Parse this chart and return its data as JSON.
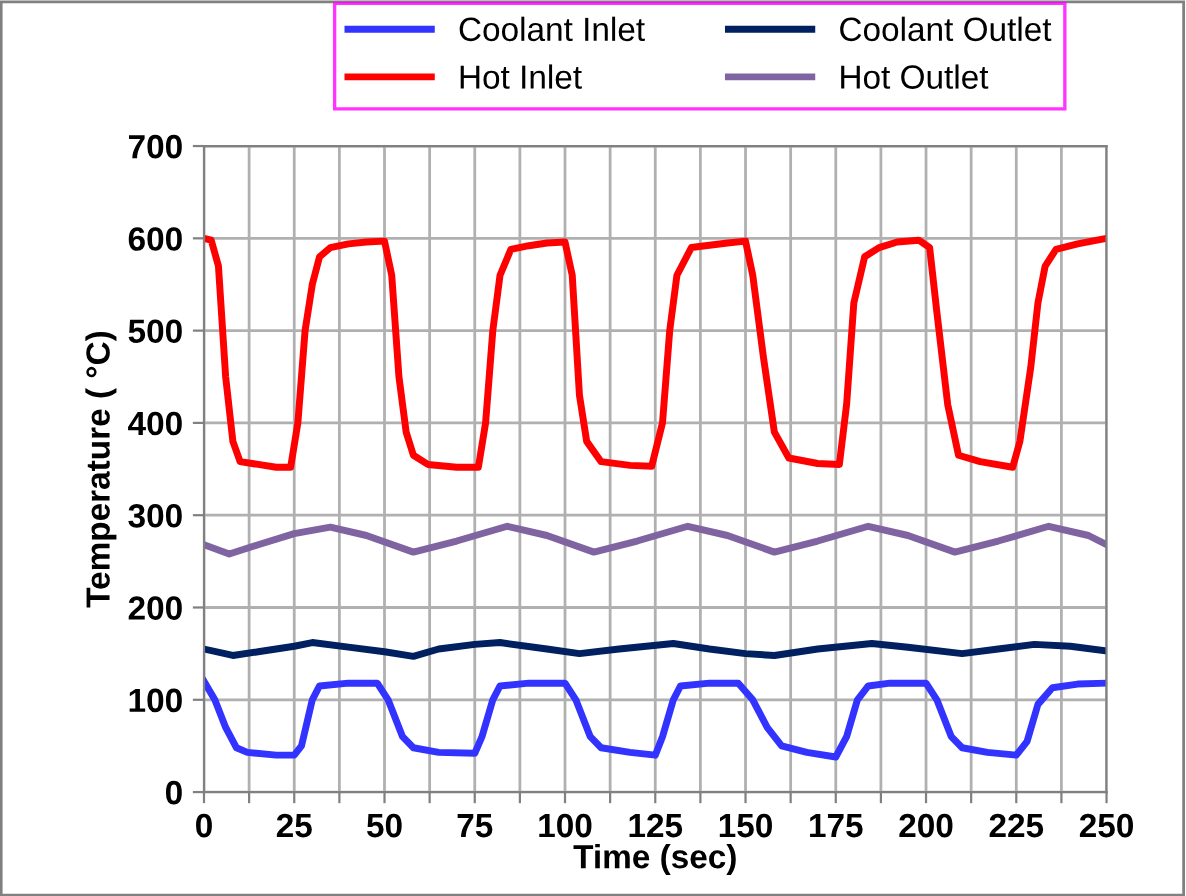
{
  "chart_data": {
    "type": "line",
    "xlabel": "Time (sec)",
    "ylabel": "Temperature ( °C)",
    "xlim": [
      0,
      250
    ],
    "ylim": [
      0,
      700
    ],
    "xticks": [
      0,
      {
        "value": 12.5,
        "label": null
      },
      25,
      {
        "value": 37.5,
        "label": null
      },
      50,
      {
        "value": 62.5,
        "label": null
      },
      75,
      {
        "value": 87.5,
        "label": null
      },
      100,
      {
        "value": 112.5,
        "label": null
      },
      125,
      {
        "value": 137.5,
        "label": null
      },
      150,
      {
        "value": 162.5,
        "label": null
      },
      175,
      {
        "value": 187.5,
        "label": null
      },
      200,
      {
        "value": 212.5,
        "label": null
      },
      225,
      {
        "value": 237.5,
        "label": null
      },
      250
    ],
    "yticks": [
      0,
      100,
      200,
      300,
      400,
      500,
      600,
      700
    ],
    "grid": true,
    "legend": "top",
    "marker": "none",
    "line_style": "solid",
    "series": [
      {
        "name": "Coolant Inlet",
        "color": "#3333ff",
        "x": [
          0,
          3,
          6,
          9,
          12,
          20,
          25,
          27,
          30,
          32,
          40,
          48,
          51,
          55,
          58,
          65,
          75,
          77,
          80,
          82,
          90,
          100,
          103,
          107,
          110,
          118,
          125,
          127,
          130,
          132,
          140,
          148,
          152,
          156,
          160,
          167,
          175,
          178,
          181,
          184,
          190,
          200,
          203,
          207,
          210,
          217,
          225,
          228,
          231,
          235,
          242,
          250
        ],
        "values": [
          120,
          100,
          70,
          48,
          43,
          40,
          40,
          50,
          100,
          115,
          118,
          118,
          100,
          60,
          48,
          43,
          42,
          60,
          100,
          115,
          118,
          118,
          100,
          60,
          48,
          43,
          40,
          60,
          100,
          115,
          118,
          118,
          100,
          70,
          50,
          43,
          38,
          60,
          100,
          115,
          118,
          118,
          100,
          60,
          48,
          43,
          40,
          55,
          95,
          113,
          117,
          118
        ]
      },
      {
        "name": "Coolant Outlet",
        "color": "#002060",
        "x": [
          0,
          8,
          15,
          25,
          30,
          40,
          50,
          58,
          65,
          75,
          82,
          95,
          104,
          115,
          130,
          140,
          150,
          158,
          170,
          185,
          195,
          210,
          220,
          230,
          240,
          250
        ],
        "values": [
          155,
          148,
          152,
          158,
          162,
          157,
          152,
          147,
          155,
          160,
          162,
          155,
          150,
          155,
          161,
          155,
          150,
          148,
          155,
          161,
          157,
          150,
          155,
          160,
          158,
          153
        ]
      },
      {
        "name": "Hot Inlet",
        "color": "#ff0000",
        "x": [
          0,
          2,
          4,
          6,
          8,
          10,
          15,
          20,
          24,
          26,
          28,
          30,
          32,
          35,
          40,
          45,
          50,
          52,
          54,
          56,
          58,
          62,
          70,
          76,
          78,
          80,
          82,
          85,
          90,
          95,
          100,
          102,
          104,
          106,
          110,
          118,
          124,
          127,
          129,
          131,
          135,
          145,
          150,
          152,
          155,
          158,
          162,
          170,
          176,
          178,
          180,
          183,
          187,
          192,
          198,
          201,
          203,
          206,
          209,
          215,
          224,
          226,
          229,
          231,
          233,
          236,
          242,
          250
        ],
        "values": [
          600,
          598,
          570,
          450,
          380,
          358,
          355,
          352,
          352,
          400,
          500,
          550,
          580,
          590,
          594,
          596,
          597,
          560,
          450,
          390,
          365,
          355,
          352,
          352,
          400,
          500,
          560,
          588,
          592,
          595,
          596,
          560,
          430,
          380,
          358,
          354,
          353,
          400,
          500,
          560,
          590,
          595,
          597,
          560,
          470,
          390,
          362,
          356,
          355,
          420,
          530,
          580,
          590,
          596,
          598,
          590,
          520,
          420,
          365,
          358,
          352,
          380,
          460,
          530,
          570,
          588,
          594,
          600
        ]
      },
      {
        "name": "Hot Outlet",
        "color": "#8064a2",
        "x": [
          0,
          7,
          15,
          25,
          35,
          45,
          58,
          70,
          84,
          95,
          108,
          120,
          134,
          145,
          158,
          170,
          184,
          195,
          208,
          220,
          234,
          245,
          250
        ],
        "values": [
          268,
          258,
          268,
          280,
          287,
          278,
          260,
          272,
          288,
          278,
          260,
          272,
          288,
          278,
          260,
          272,
          288,
          278,
          260,
          272,
          288,
          278,
          268
        ]
      }
    ]
  }
}
